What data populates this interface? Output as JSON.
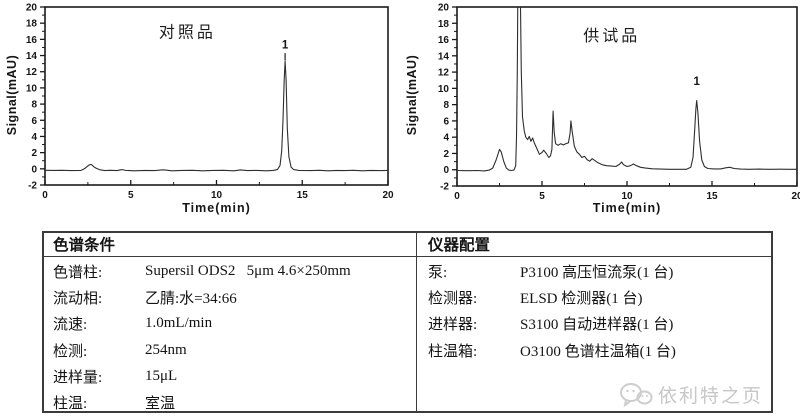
{
  "chart_data": [
    {
      "type": "line",
      "title": {
        "text": "对照品",
        "t": 8.3,
        "v": 16.2
      },
      "xlabel": "Time(min)",
      "ylabel": "Signal(mAU)",
      "xlim": [
        0,
        20
      ],
      "ylim": [
        -2,
        20
      ],
      "xticks": [
        0,
        5,
        10,
        15,
        20
      ],
      "xticks_minor": [
        2.5,
        7.5,
        12.5,
        17.5
      ],
      "yticks": [
        -2,
        0,
        2,
        4,
        6,
        8,
        10,
        12,
        14,
        16,
        18,
        20
      ],
      "yticks_minor": [
        -1,
        1,
        3,
        5,
        7,
        9,
        11,
        13,
        15,
        17,
        19
      ],
      "grid": false,
      "line_color": "#2f2f2f",
      "peaks": [
        {
          "label": "1",
          "t": 14.0,
          "v": 14.9,
          "apex_v": 13.3
        }
      ],
      "rt_marker": {
        "t": 14.0,
        "v1": 13.4,
        "v2": 14.3
      },
      "trace": [
        [
          0,
          -0.18
        ],
        [
          0.5,
          -0.2
        ],
        [
          1,
          -0.18
        ],
        [
          1.5,
          -0.22
        ],
        [
          2.1,
          -0.2
        ],
        [
          2.3,
          0.0
        ],
        [
          2.55,
          0.45
        ],
        [
          2.7,
          0.55
        ],
        [
          2.85,
          0.25
        ],
        [
          3.0,
          0.05
        ],
        [
          3.2,
          -0.12
        ],
        [
          3.5,
          -0.22
        ],
        [
          3.8,
          -0.18
        ],
        [
          4.2,
          -0.22
        ],
        [
          4.5,
          -0.1
        ],
        [
          4.7,
          -0.2
        ],
        [
          5.2,
          -0.25
        ],
        [
          5.8,
          -0.2
        ],
        [
          6.4,
          -0.22
        ],
        [
          6.9,
          -0.12
        ],
        [
          7.4,
          -0.25
        ],
        [
          8.0,
          -0.2
        ],
        [
          8.6,
          -0.18
        ],
        [
          9.2,
          -0.25
        ],
        [
          9.8,
          -0.2
        ],
        [
          10.4,
          -0.18
        ],
        [
          11.0,
          -0.25
        ],
        [
          11.4,
          -0.13
        ],
        [
          11.8,
          -0.22
        ],
        [
          12.4,
          -0.2
        ],
        [
          12.9,
          -0.25
        ],
        [
          13.3,
          -0.2
        ],
        [
          13.55,
          -0.1
        ],
        [
          13.7,
          0.4
        ],
        [
          13.8,
          2.2
        ],
        [
          13.88,
          6.0
        ],
        [
          13.95,
          11.0
        ],
        [
          14.0,
          13.3
        ],
        [
          14.06,
          11.0
        ],
        [
          14.13,
          5.0
        ],
        [
          14.22,
          1.5
        ],
        [
          14.35,
          0.2
        ],
        [
          14.5,
          -0.1
        ],
        [
          14.8,
          -0.2
        ],
        [
          15.5,
          -0.22
        ],
        [
          16.0,
          -0.18
        ],
        [
          16.5,
          -0.25
        ],
        [
          17.0,
          -0.2
        ],
        [
          17.5,
          -0.22
        ],
        [
          18.0,
          -0.18
        ],
        [
          18.5,
          -0.25
        ],
        [
          19.0,
          -0.2
        ],
        [
          19.5,
          -0.22
        ],
        [
          20,
          -0.2
        ]
      ]
    },
    {
      "type": "line",
      "title": {
        "text": "供试品",
        "t": 9.1,
        "v": 15.8
      },
      "xlabel": "Time(min)",
      "ylabel": "Signal(mAU)",
      "xlim": [
        0,
        20
      ],
      "ylim": [
        -2,
        20
      ],
      "xticks": [
        0,
        5,
        10,
        15,
        20
      ],
      "xticks_minor": [
        2.5,
        7.5,
        12.5,
        17.5
      ],
      "yticks": [
        -2,
        0,
        2,
        4,
        6,
        8,
        10,
        12,
        14,
        16,
        18,
        20
      ],
      "yticks_minor": [
        -1,
        1,
        3,
        5,
        7,
        9,
        11,
        13,
        15,
        17,
        19
      ],
      "grid": false,
      "line_color": "#2f2f2f",
      "peaks": [
        {
          "label": "1",
          "t": 14.1,
          "v": 10.4,
          "apex_v": 8.5
        }
      ],
      "trace": [
        [
          0,
          -0.1
        ],
        [
          0.6,
          -0.12
        ],
        [
          1.2,
          -0.1
        ],
        [
          1.6,
          -0.15
        ],
        [
          1.9,
          -0.05
        ],
        [
          2.1,
          0.2
        ],
        [
          2.3,
          1.2
        ],
        [
          2.5,
          2.5
        ],
        [
          2.6,
          2.2
        ],
        [
          2.75,
          1.0
        ],
        [
          2.9,
          0.2
        ],
        [
          3.05,
          -0.05
        ],
        [
          3.2,
          -0.1
        ],
        [
          3.35,
          -0.05
        ],
        [
          3.45,
          0.5
        ],
        [
          3.5,
          4
        ],
        [
          3.55,
          12
        ],
        [
          3.58,
          23
        ],
        [
          3.72,
          23
        ],
        [
          3.78,
          12
        ],
        [
          3.85,
          6.5
        ],
        [
          3.95,
          4.8
        ],
        [
          4.05,
          4.0
        ],
        [
          4.15,
          3.7
        ],
        [
          4.25,
          4.1
        ],
        [
          4.35,
          3.5
        ],
        [
          4.45,
          3.9
        ],
        [
          4.55,
          3.3
        ],
        [
          4.7,
          2.6
        ],
        [
          4.85,
          1.9
        ],
        [
          5.0,
          2.1
        ],
        [
          5.1,
          2.4
        ],
        [
          5.25,
          2.0
        ],
        [
          5.4,
          1.5
        ],
        [
          5.5,
          1.7
        ],
        [
          5.58,
          2.5
        ],
        [
          5.65,
          7.2
        ],
        [
          5.72,
          4.6
        ],
        [
          5.8,
          3.2
        ],
        [
          5.95,
          3.0
        ],
        [
          6.1,
          3.2
        ],
        [
          6.25,
          3.05
        ],
        [
          6.4,
          3.2
        ],
        [
          6.55,
          3.3
        ],
        [
          6.65,
          4.5
        ],
        [
          6.7,
          6.0
        ],
        [
          6.78,
          4.6
        ],
        [
          6.9,
          2.9
        ],
        [
          7.05,
          2.2
        ],
        [
          7.2,
          1.9
        ],
        [
          7.35,
          1.5
        ],
        [
          7.5,
          1.65
        ],
        [
          7.65,
          1.25
        ],
        [
          7.8,
          1.05
        ],
        [
          7.95,
          1.35
        ],
        [
          8.1,
          1.15
        ],
        [
          8.3,
          0.85
        ],
        [
          8.55,
          0.6
        ],
        [
          8.8,
          0.5
        ],
        [
          9.1,
          0.45
        ],
        [
          9.35,
          0.4
        ],
        [
          9.55,
          0.65
        ],
        [
          9.68,
          0.95
        ],
        [
          9.8,
          0.6
        ],
        [
          10.0,
          0.4
        ],
        [
          10.2,
          0.5
        ],
        [
          10.38,
          0.7
        ],
        [
          10.55,
          0.5
        ],
        [
          10.8,
          0.3
        ],
        [
          11.1,
          0.2
        ],
        [
          11.5,
          0.12
        ],
        [
          12.0,
          0.08
        ],
        [
          12.5,
          0.05
        ],
        [
          13.0,
          0.05
        ],
        [
          13.5,
          0.05
        ],
        [
          13.75,
          0.3
        ],
        [
          13.88,
          1.5
        ],
        [
          13.97,
          4.5
        ],
        [
          14.05,
          7.5
        ],
        [
          14.1,
          8.5
        ],
        [
          14.17,
          7.0
        ],
        [
          14.27,
          3.5
        ],
        [
          14.4,
          1.2
        ],
        [
          14.55,
          0.4
        ],
        [
          14.75,
          0.15
        ],
        [
          15.1,
          0.1
        ],
        [
          15.5,
          0.1
        ],
        [
          15.85,
          0.25
        ],
        [
          16.05,
          0.3
        ],
        [
          16.3,
          0.15
        ],
        [
          16.7,
          0.08
        ],
        [
          17.2,
          0.05
        ],
        [
          17.8,
          0.08
        ],
        [
          18.4,
          0.05
        ],
        [
          19.0,
          0.06
        ],
        [
          19.5,
          0.05
        ],
        [
          20,
          0.05
        ]
      ]
    }
  ],
  "table": {
    "left": {
      "header": "色谱条件",
      "rows": [
        {
          "label": "色谱柱:",
          "value": "Supersil ODS2   5μm 4.6×250mm"
        },
        {
          "label": "流动相:",
          "value": "乙腈:水=34:66"
        },
        {
          "label": "流速:",
          "value": "1.0mL/min"
        },
        {
          "label": "检测:",
          "value": "254nm"
        },
        {
          "label": "进样量:",
          "value": "15μL"
        },
        {
          "label": "柱温:",
          "value": "室温"
        }
      ]
    },
    "right": {
      "header": "仪器配置",
      "rows": [
        {
          "label": "泵:",
          "value": "P3100 高压恒流泵(1 台)"
        },
        {
          "label": "检测器:",
          "value": "ELSD 检测器(1 台)"
        },
        {
          "label": "进样器:",
          "value": "S3100 自动进样器(1 台)"
        },
        {
          "label": "柱温箱:",
          "value": "O3100 色谱柱温箱(1 台)"
        }
      ]
    }
  },
  "watermark": {
    "text": "依利特之页"
  },
  "colors": {
    "axis": "#1a1a1a",
    "trace": "#2f2f2f",
    "table_border": "#3b3b3b",
    "watermark": "#c7c7c7"
  }
}
